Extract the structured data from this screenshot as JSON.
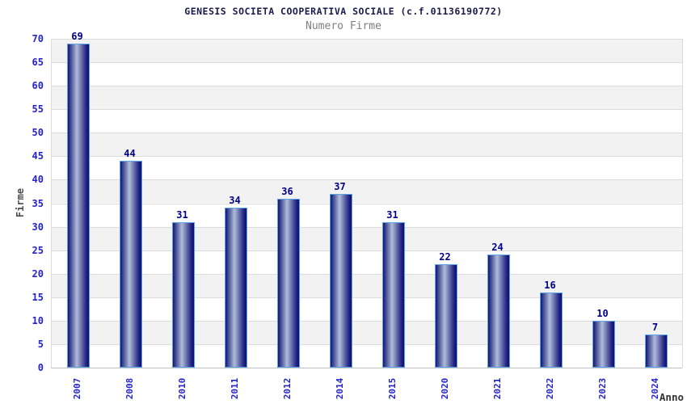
{
  "chart_data": {
    "type": "bar",
    "title": "GENESIS SOCIETA COOPERATIVA SOCIALE (c.f.01136190772)",
    "subtitle": "Numero Firme",
    "xlabel": "Anno",
    "ylabel": "Firme",
    "categories": [
      "2007",
      "2008",
      "2010",
      "2011",
      "2012",
      "2014",
      "2015",
      "2020",
      "2021",
      "2022",
      "2023",
      "2024"
    ],
    "values": [
      69,
      44,
      31,
      34,
      36,
      37,
      31,
      22,
      24,
      16,
      10,
      7
    ],
    "ylim": [
      0,
      70
    ],
    "ytick_step": 5,
    "yticks": [
      0,
      5,
      10,
      15,
      20,
      25,
      30,
      35,
      40,
      45,
      50,
      55,
      60,
      65,
      70
    ],
    "grid": "horizontal, alternating shaded bands every 5 units",
    "legend": "none",
    "colors": {
      "bar_dark": "#14147a",
      "bar_light": "#b4bcda",
      "bar_border": "#58a6e8",
      "value_label": "#00008b",
      "axis_tick_label": "#2323cc",
      "title": "#1b1b4b",
      "subtitle": "#7f7f7f",
      "y_axis_title": "#4d4d4d",
      "x_axis_title": "#333333",
      "band_gray": "#f2f2f2",
      "gridline": "#dcdcdc",
      "baseline": "#c0c0c0"
    }
  }
}
